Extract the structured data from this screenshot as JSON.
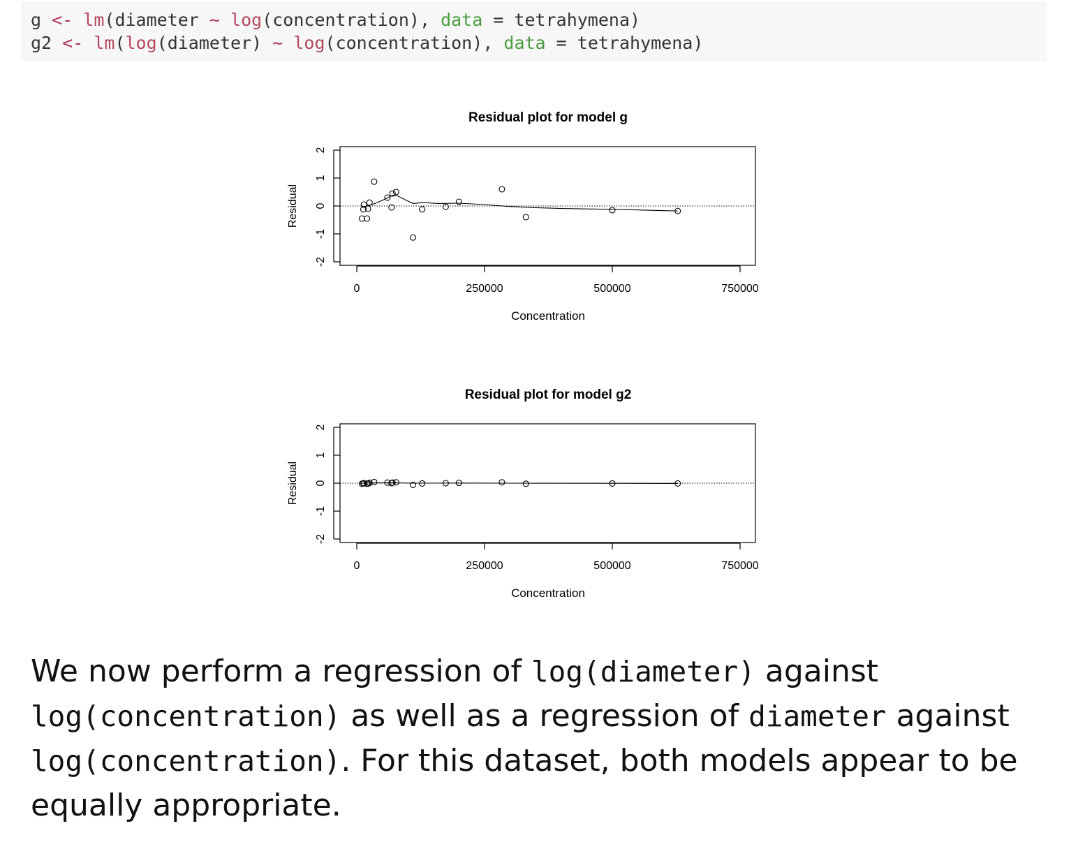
{
  "code": {
    "lines": [
      [
        {
          "t": "g ",
          "c": "plain"
        },
        {
          "t": "<-",
          "c": "op"
        },
        {
          "t": " ",
          "c": "plain"
        },
        {
          "t": "lm",
          "c": "fn"
        },
        {
          "t": "(diameter ",
          "c": "plain"
        },
        {
          "t": "~",
          "c": "op"
        },
        {
          "t": " ",
          "c": "plain"
        },
        {
          "t": "log",
          "c": "fn"
        },
        {
          "t": "(concentration), ",
          "c": "plain"
        },
        {
          "t": "data",
          "c": "kw"
        },
        {
          "t": " = tetrahymena)",
          "c": "plain"
        }
      ],
      [
        {
          "t": "g2 ",
          "c": "plain"
        },
        {
          "t": "<-",
          "c": "op"
        },
        {
          "t": " ",
          "c": "plain"
        },
        {
          "t": "lm",
          "c": "fn"
        },
        {
          "t": "(",
          "c": "plain"
        },
        {
          "t": "log",
          "c": "fn"
        },
        {
          "t": "(diameter) ",
          "c": "plain"
        },
        {
          "t": "~",
          "c": "op"
        },
        {
          "t": " ",
          "c": "plain"
        },
        {
          "t": "log",
          "c": "fn"
        },
        {
          "t": "(concentration), ",
          "c": "plain"
        },
        {
          "t": "data",
          "c": "kw"
        },
        {
          "t": " = tetrahymena)",
          "c": "plain"
        }
      ]
    ]
  },
  "chart_data": [
    {
      "type": "scatter",
      "title": "Residual plot for model g",
      "xlabel": "Concentration",
      "ylabel": "Residual",
      "xlim": [
        0,
        750000
      ],
      "ylim": [
        -2,
        2
      ],
      "xticks": [
        "0",
        "250000",
        "500000",
        "750000"
      ],
      "yticks": [
        "-2",
        "-1",
        "0",
        "1",
        "2"
      ],
      "reference_line": 0,
      "points": [
        [
          10000,
          -0.45
        ],
        [
          13000,
          -0.12
        ],
        [
          14000,
          0.05
        ],
        [
          20000,
          -0.45
        ],
        [
          22000,
          -0.1
        ],
        [
          25000,
          0.12
        ],
        [
          34000,
          0.87
        ],
        [
          60000,
          0.3
        ],
        [
          68000,
          -0.05
        ],
        [
          70000,
          0.45
        ],
        [
          77000,
          0.5
        ],
        [
          110000,
          -1.13
        ],
        [
          128000,
          -0.12
        ],
        [
          174000,
          -0.03
        ],
        [
          200000,
          0.15
        ],
        [
          284000,
          0.6
        ],
        [
          331000,
          -0.4
        ],
        [
          500000,
          -0.15
        ],
        [
          628000,
          -0.18
        ]
      ],
      "smooth": [
        [
          10000,
          -0.05
        ],
        [
          30000,
          0.05
        ],
        [
          50000,
          0.2
        ],
        [
          70000,
          0.38
        ],
        [
          80000,
          0.36
        ],
        [
          95000,
          0.22
        ],
        [
          110000,
          0.09
        ],
        [
          130000,
          0.12
        ],
        [
          160000,
          0.09
        ],
        [
          200000,
          0.1
        ],
        [
          250000,
          0.05
        ],
        [
          300000,
          -0.02
        ],
        [
          350000,
          -0.06
        ],
        [
          400000,
          -0.09
        ],
        [
          500000,
          -0.12
        ],
        [
          628000,
          -0.18
        ]
      ]
    },
    {
      "type": "scatter",
      "title": "Residual plot for model g2",
      "xlabel": "Concentration",
      "ylabel": "Residual",
      "xlim": [
        0,
        750000
      ],
      "ylim": [
        -2,
        2
      ],
      "xticks": [
        "0",
        "250000",
        "500000",
        "750000"
      ],
      "yticks": [
        "-2",
        "-1",
        "0",
        "1",
        "2"
      ],
      "reference_line": 0,
      "points": [
        [
          10000,
          -0.02
        ],
        [
          13000,
          -0.01
        ],
        [
          14000,
          0.0
        ],
        [
          20000,
          -0.02
        ],
        [
          22000,
          -0.01
        ],
        [
          25000,
          0.01
        ],
        [
          34000,
          0.04
        ],
        [
          60000,
          0.02
        ],
        [
          68000,
          0.0
        ],
        [
          70000,
          0.02
        ],
        [
          77000,
          0.03
        ],
        [
          110000,
          -0.06
        ],
        [
          128000,
          -0.01
        ],
        [
          174000,
          0.0
        ],
        [
          200000,
          0.01
        ],
        [
          284000,
          0.03
        ],
        [
          331000,
          -0.02
        ],
        [
          500000,
          -0.01
        ],
        [
          628000,
          -0.01
        ]
      ],
      "smooth": [
        [
          10000,
          0.0
        ],
        [
          40000,
          0.01
        ],
        [
          70000,
          0.015
        ],
        [
          110000,
          0.0
        ],
        [
          200000,
          0.005
        ],
        [
          300000,
          0.0
        ],
        [
          500000,
          -0.005
        ],
        [
          628000,
          -0.01
        ]
      ]
    }
  ],
  "prose": {
    "segments": [
      {
        "t": "We now perform a regression of ",
        "mono": false
      },
      {
        "t": "log(diameter)",
        "mono": true
      },
      {
        "t": " against ",
        "mono": false
      },
      {
        "t": "log(concentration)",
        "mono": true
      },
      {
        "t": " as well as a regression of ",
        "mono": false
      },
      {
        "t": "diameter",
        "mono": true
      },
      {
        "t": " against ",
        "mono": false
      },
      {
        "t": "log(concentration)",
        "mono": true
      },
      {
        "t": ".  For this dataset, both models appear to be equally appropriate.",
        "mono": false
      }
    ]
  }
}
